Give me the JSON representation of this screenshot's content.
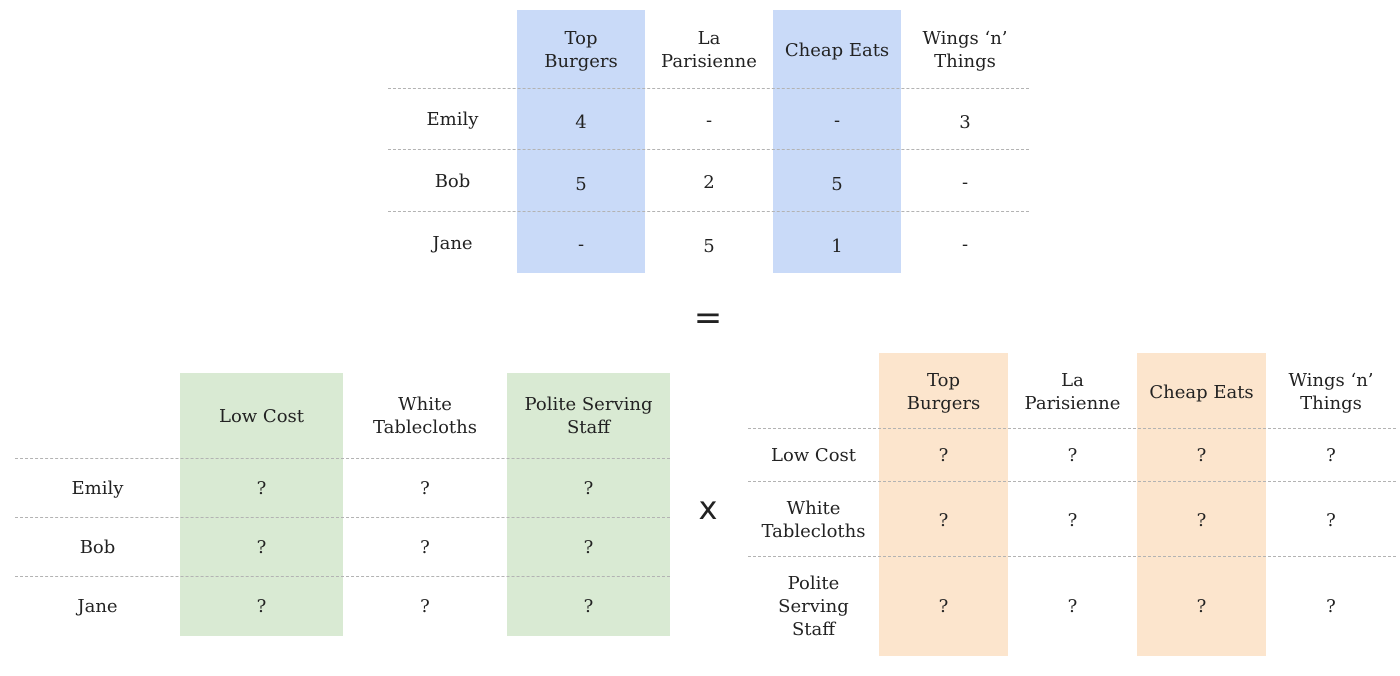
{
  "ratings": {
    "columns": [
      "Top\nBurgers",
      "La\nParisienne",
      "Cheap Eats",
      "Wings ‘n’\nThings"
    ],
    "rows": [
      {
        "label": "Emily",
        "values": [
          "4",
          "-",
          "-",
          "3"
        ]
      },
      {
        "label": "Bob",
        "values": [
          "5",
          "2",
          "5",
          "-"
        ]
      },
      {
        "label": "Jane",
        "values": [
          "-",
          "5",
          "1",
          "-"
        ]
      }
    ],
    "highlight_color": "#c9daf8"
  },
  "equals_sign": "=",
  "user_features": {
    "columns": [
      "Low Cost",
      "White\nTablecloths",
      "Polite Serving\nStaff"
    ],
    "rows": [
      {
        "label": "Emily",
        "values": [
          "?",
          "?",
          "?"
        ]
      },
      {
        "label": "Bob",
        "values": [
          "?",
          "?",
          "?"
        ]
      },
      {
        "label": "Jane",
        "values": [
          "?",
          "?",
          "?"
        ]
      }
    ],
    "highlight_color": "#d9ead3"
  },
  "times_sign": "x",
  "restaurant_features": {
    "columns": [
      "Top\nBurgers",
      "La\nParisienne",
      "Cheap Eats",
      "Wings ‘n’\nThings"
    ],
    "rows": [
      {
        "label": "Low Cost",
        "values": [
          "?",
          "?",
          "?",
          "?"
        ]
      },
      {
        "label": "White\nTablecloths",
        "values": [
          "?",
          "?",
          "?",
          "?"
        ]
      },
      {
        "label": "Polite\nServing\nStaff",
        "values": [
          "?",
          "?",
          "?",
          "?"
        ]
      }
    ],
    "highlight_color": "#fce5cd"
  }
}
